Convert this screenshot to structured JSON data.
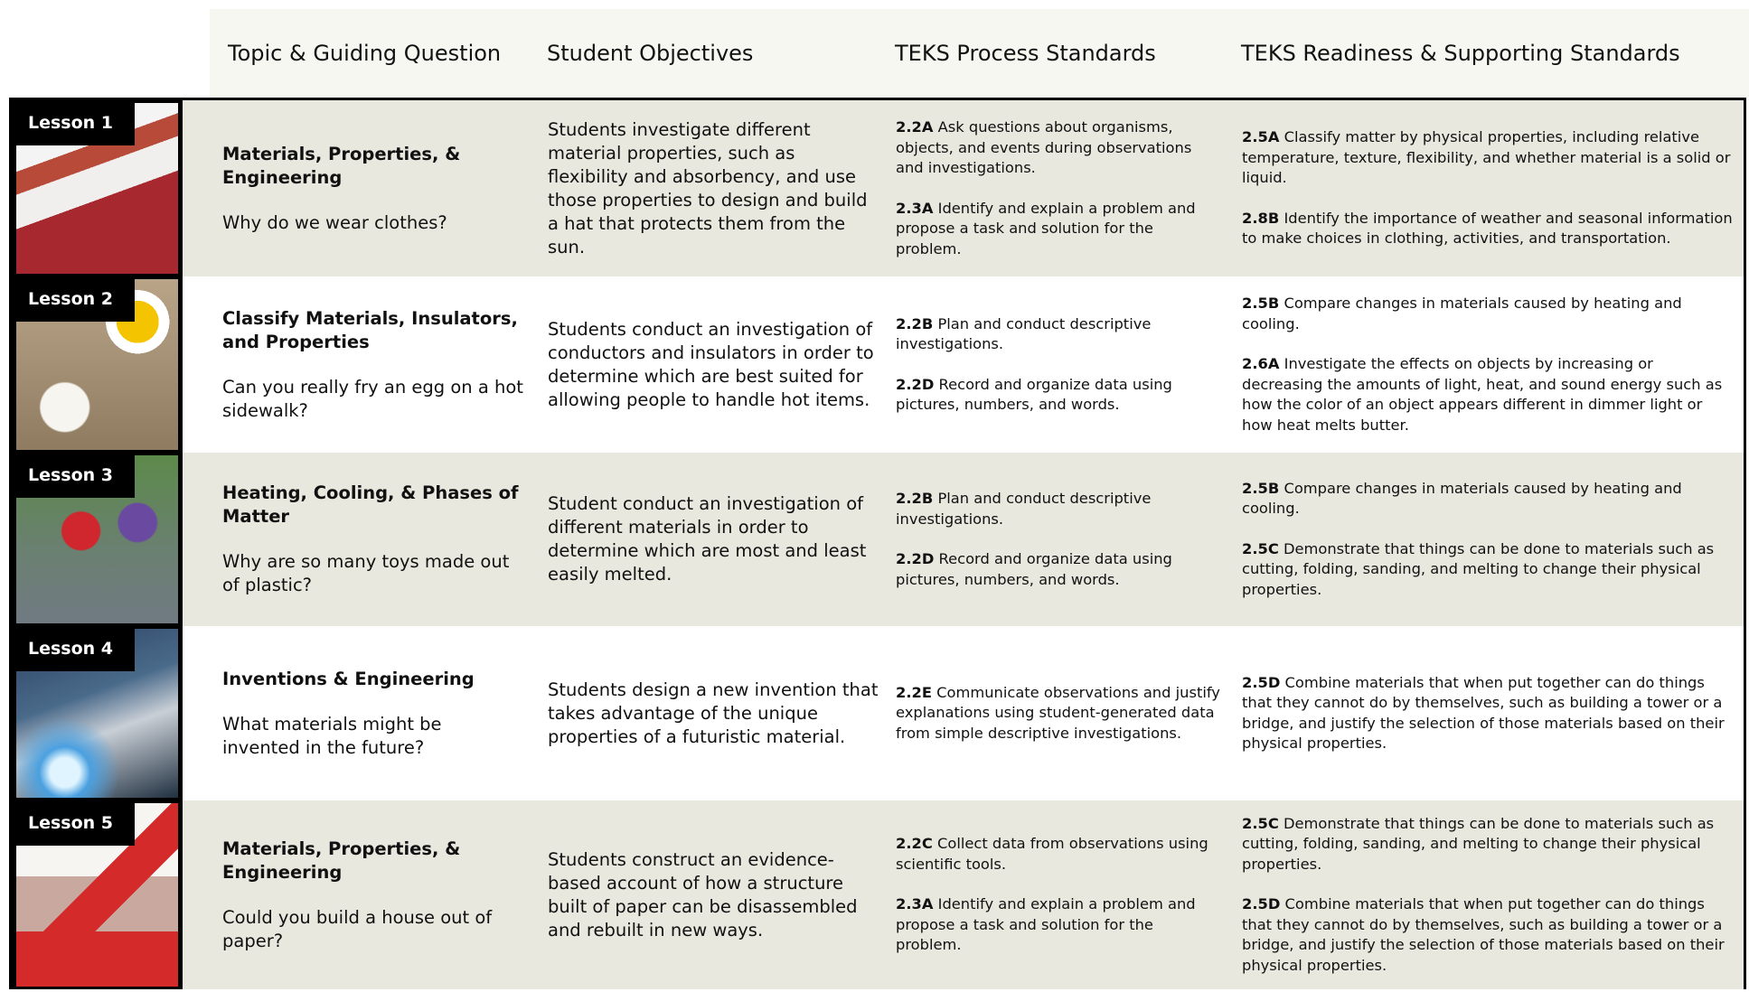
{
  "header": {
    "columns": [
      "Topic & Guiding Question",
      "Student Objectives",
      "TEKS Process Standards",
      "TEKS Readiness & Supporting Standards"
    ]
  },
  "lessons": [
    {
      "label": "Lesson 1",
      "topic": {
        "title": "Materials, Properties, & Engineering",
        "question": "Why do we wear clothes?"
      },
      "objective": "Students investigate different material properties, such as flexibility and absorbency, and use those properties to design and build a hat that protects them from the sun.",
      "process": [
        {
          "code": "2.2A",
          "text": "Ask questions about organisms, objects, and events during observations and investigations."
        },
        {
          "code": "2.3A",
          "text": "Identify and explain a problem and propose a task and solution for the problem."
        }
      ],
      "readiness": [
        {
          "code": "2.5A",
          "text": "Classify matter by physical properties, including relative temperature, texture, flexibility, and whether material is a solid or liquid."
        },
        {
          "code": "2.8B",
          "text": "Identify the importance of weather and seasonal information to make choices in clothing, activities, and transportation."
        }
      ]
    },
    {
      "label": "Lesson 2",
      "topic": {
        "title": "Classify Materials, Insulators, and Properties",
        "question": "Can you really fry an egg on a hot sidewalk?"
      },
      "objective": "Students conduct an investigation of conductors and insulators in order to determine which are best suited for allowing people to handle hot items.",
      "process": [
        {
          "code": "2.2B",
          "text": "Plan and conduct descriptive investigations."
        },
        {
          "code": "2.2D",
          "text": "Record and organize data using pictures, numbers, and words."
        }
      ],
      "readiness": [
        {
          "code": "2.5B",
          "text": "Compare changes in materials caused by heating and cooling."
        },
        {
          "code": "2.6A",
          "text": "Investigate the effects on objects by increasing or decreasing the amounts of light, heat, and sound energy such as how the color of an object appears different in dimmer light or how heat melts butter."
        }
      ]
    },
    {
      "label": "Lesson 3",
      "topic": {
        "title": "Heating, Cooling, & Phases of Matter",
        "question": "Why are so many toys made out of plastic?"
      },
      "objective": "Student conduct an investigation of different materials in order to determine which are most and least easily melted.",
      "process": [
        {
          "code": "2.2B",
          "text": "Plan and conduct descriptive investigations."
        },
        {
          "code": "2.2D",
          "text": "Record and organize data using pictures, numbers, and words."
        }
      ],
      "readiness": [
        {
          "code": "2.5B",
          "text": "Compare changes in materials caused by heating and cooling."
        },
        {
          "code": "2.5C",
          "text": "Demonstrate that things can be done to materials such as cutting, folding, sanding, and melting to change their physical properties."
        }
      ]
    },
    {
      "label": "Lesson 4",
      "topic": {
        "title": "Inventions & Engineering",
        "question": "What materials might be invented in the future?"
      },
      "objective": "Students design a new invention that takes advantage of the unique properties of a futuristic material.",
      "process": [
        {
          "code": "2.2E",
          "text": "Communicate observations and justify explanations using student-generated data from simple descriptive investigations."
        }
      ],
      "readiness": [
        {
          "code": "2.5D",
          "text": "Combine materials that when put together can do things that they cannot do by themselves, such as building a tower or a bridge, and justify the selection of those materials based on their physical properties."
        }
      ]
    },
    {
      "label": "Lesson 5",
      "topic": {
        "title": "Materials, Properties, & Engineering",
        "question": "Could you build a house out of paper?"
      },
      "objective": "Students construct an evidence- based account of how a structure built of paper can be disassembled and rebuilt in new ways.",
      "process": [
        {
          "code": "2.2C",
          "text": "Collect data from observations using scientific tools."
        },
        {
          "code": "2.3A",
          "text": "Identify and explain a problem and propose a task and solution for the problem."
        }
      ],
      "readiness": [
        {
          "code": "2.5C",
          "text": "Demonstrate that things can be done to materials such as cutting, folding, sanding, and melting to change their physical properties."
        },
        {
          "code": "2.5D",
          "text": "Combine materials that when put together can do things that they cannot do by themselves, such as building a tower or a bridge, and justify the selection of those materials based on their physical properties."
        }
      ]
    }
  ]
}
